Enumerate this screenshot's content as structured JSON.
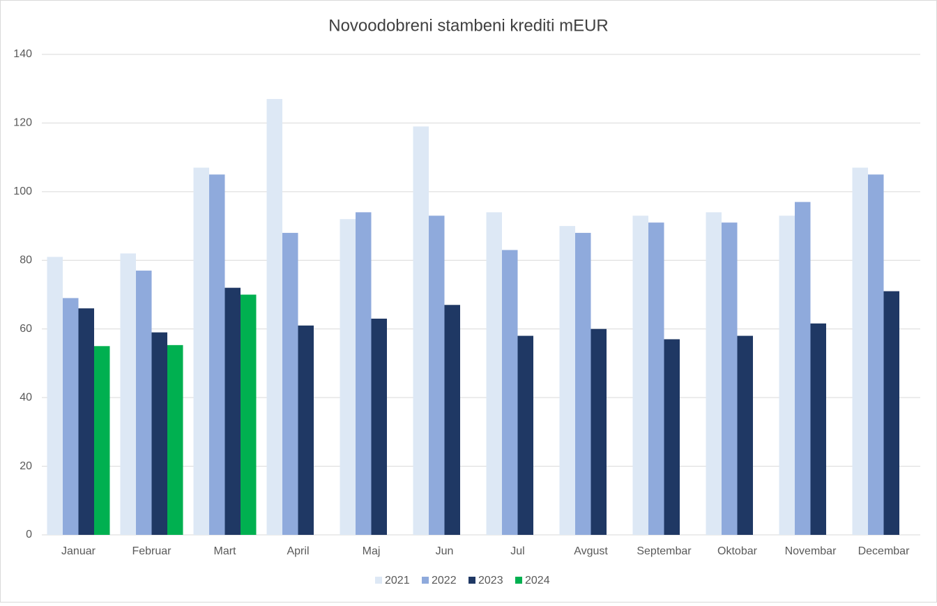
{
  "chart_data": {
    "type": "bar",
    "title": "Novoodobreni stambeni krediti mEUR",
    "categories": [
      "Januar",
      "Februar",
      "Mart",
      "April",
      "Maj",
      "Jun",
      "Jul",
      "Avgust",
      "Septembar",
      "Oktobar",
      "Novembar",
      "Decembar"
    ],
    "series": [
      {
        "name": "2021",
        "color": "#dde8f5",
        "values": [
          81,
          82,
          107,
          127,
          92,
          119,
          94,
          90,
          93,
          94,
          93,
          107
        ]
      },
      {
        "name": "2022",
        "color": "#8faadc",
        "values": [
          69,
          77,
          105,
          88,
          94,
          93,
          83,
          88,
          91,
          91,
          97,
          105
        ]
      },
      {
        "name": "2023",
        "color": "#1f3864",
        "values": [
          66,
          59,
          72,
          61,
          63,
          67,
          58,
          60,
          57,
          58,
          61.6,
          71
        ]
      },
      {
        "name": "2024",
        "color": "#00b050",
        "values": [
          55,
          55.3,
          70,
          null,
          null,
          null,
          null,
          null,
          null,
          null,
          null,
          null
        ]
      }
    ],
    "ylim": [
      0,
      140
    ],
    "yticks": [
      0,
      20,
      40,
      60,
      80,
      100,
      120,
      140
    ],
    "grid": true,
    "legend": "bottom"
  }
}
